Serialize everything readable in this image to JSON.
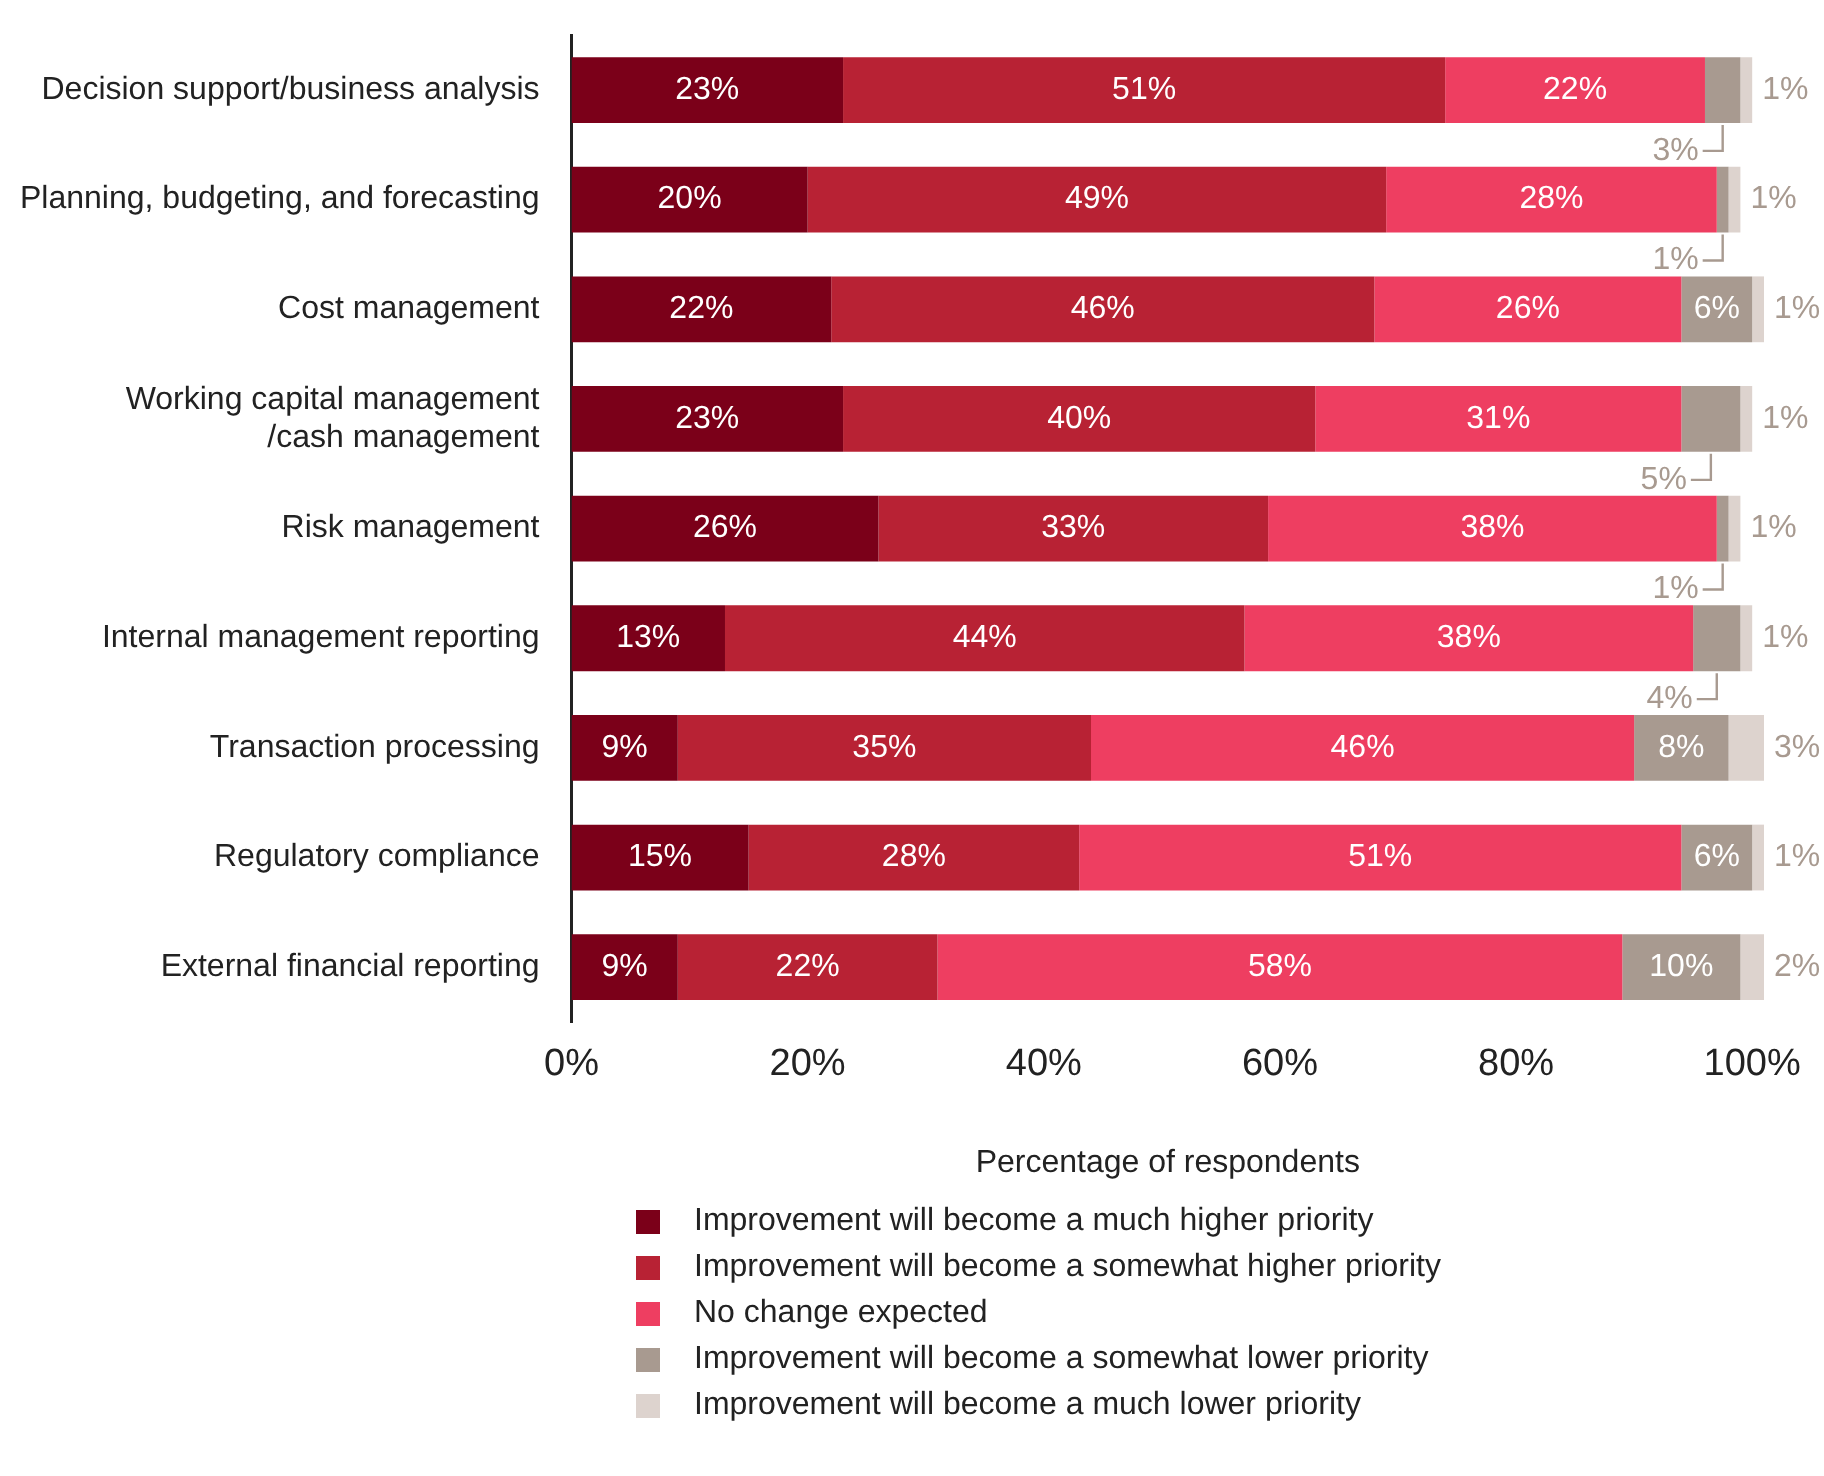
{
  "chart_data": {
    "type": "bar",
    "orientation": "horizontal",
    "stacked": true,
    "xlabel": "Percentage of respondents",
    "categories": [
      "Decision support/business analysis",
      "Planning, budgeting, and forecasting",
      "Cost management",
      "Working capital management /cash management",
      "Risk management",
      "Internal management reporting",
      "Transaction processing",
      "Regulatory compliance",
      "External financial reporting"
    ],
    "series": [
      {
        "name": "Improvement will become a much higher priority",
        "color": "#7b0019",
        "values": [
          23,
          20,
          22,
          23,
          26,
          13,
          9,
          15,
          9
        ],
        "value_labels": [
          "23%",
          "20%",
          "22%",
          "23%",
          "26%",
          "13%",
          "9%",
          "15%",
          "9%"
        ]
      },
      {
        "name": "Improvement will become a somewhat higher priority",
        "color": "#b82234",
        "values": [
          51,
          49,
          46,
          40,
          33,
          44,
          35,
          28,
          22
        ],
        "value_labels": [
          "51%",
          "49%",
          "46%",
          "40%",
          "33%",
          "44%",
          "35%",
          "28%",
          "22%"
        ]
      },
      {
        "name": "No change expected",
        "color": "#ee3e61",
        "values": [
          22,
          28,
          26,
          31,
          38,
          38,
          46,
          51,
          58
        ],
        "value_labels": [
          "22%",
          "28%",
          "26%",
          "31%",
          "38%",
          "38%",
          "46%",
          "51%",
          "58%"
        ]
      },
      {
        "name": "Improvement will become a somewhat lower priority",
        "color": "#a89a90",
        "values": [
          3,
          1,
          6,
          5,
          1,
          4,
          8,
          6,
          10
        ],
        "value_labels": [
          "3%",
          "1%",
          "6%",
          "5%",
          "1%",
          "4%",
          "8%",
          "6%",
          "10%"
        ]
      },
      {
        "name": "Improvement will become a much lower priority",
        "color": "#ddd3ce",
        "values": [
          1,
          1,
          1,
          1,
          1,
          1,
          3,
          1,
          2
        ],
        "value_labels": [
          "1%",
          "1%",
          "1%",
          "1%",
          "1%",
          "1%",
          "3%",
          "1%",
          "2%"
        ]
      }
    ],
    "xlim": [
      0,
      101
    ],
    "xticks": [
      {
        "value": 0,
        "label": "0%"
      },
      {
        "value": 20,
        "label": "20%"
      },
      {
        "value": 40,
        "label": "40%"
      },
      {
        "value": 60,
        "label": "60%"
      },
      {
        "value": 80,
        "label": "80%"
      },
      {
        "value": 100,
        "label": "100%"
      }
    ],
    "grid": false,
    "legend": "bottom"
  }
}
